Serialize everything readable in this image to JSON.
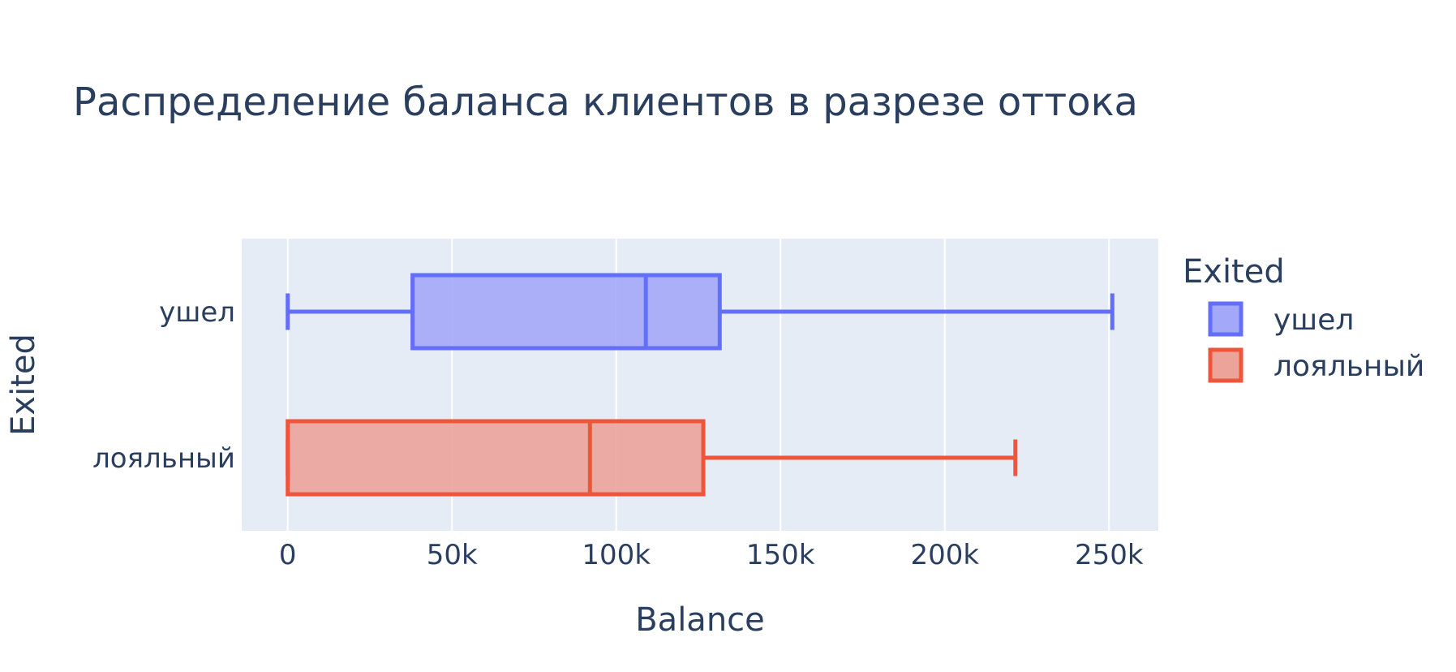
{
  "modebar": {
    "buttons": [
      {
        "name": "camera-icon",
        "color": "#d8d8d8"
      },
      {
        "name": "zoom-icon",
        "color": "#d8d8d8"
      },
      {
        "name": "pan-icon",
        "color": "#d8d8d8"
      },
      {
        "name": "zoom-in-icon",
        "color": "#d8d8d8"
      },
      {
        "name": "zoom-out-icon",
        "color": "#d8d8d8"
      },
      {
        "name": "autoscale-icon",
        "color": "#d8d8d8"
      },
      {
        "name": "home-icon",
        "color": "#d8d8d8"
      },
      {
        "name": "plotly-logo-icon",
        "color": "#a0a0a0"
      }
    ]
  },
  "chart_data": {
    "type": "box",
    "title": "Распределение баланса клиентов в разрезе оттока",
    "xlabel": "Balance",
    "ylabel": "Exited",
    "xlim": [
      -14000,
      265000
    ],
    "xticks": [
      0,
      50000,
      100000,
      150000,
      200000,
      250000
    ],
    "xticklabels": [
      "0",
      "50k",
      "100k",
      "150k",
      "200k",
      "250k"
    ],
    "grid": true,
    "legend_position": "right",
    "legend_title": "Exited",
    "colors": {
      "plot_bg": "#e5ecf6",
      "grid": "#ffffff",
      "text": "#2a3f5f"
    },
    "series": [
      {
        "name": "ушел",
        "category": "ушел",
        "color": "#636efa",
        "fill": "#a3a9f8",
        "min": 0,
        "q1": 38000,
        "median": 109000,
        "q3": 131500,
        "max": 251000
      },
      {
        "name": "лояльный",
        "category": "лояльный",
        "color": "#ef553b",
        "fill": "#eba39a",
        "min": 0,
        "q1": 0,
        "median": 92000,
        "q3": 126500,
        "max": 221500
      }
    ]
  }
}
